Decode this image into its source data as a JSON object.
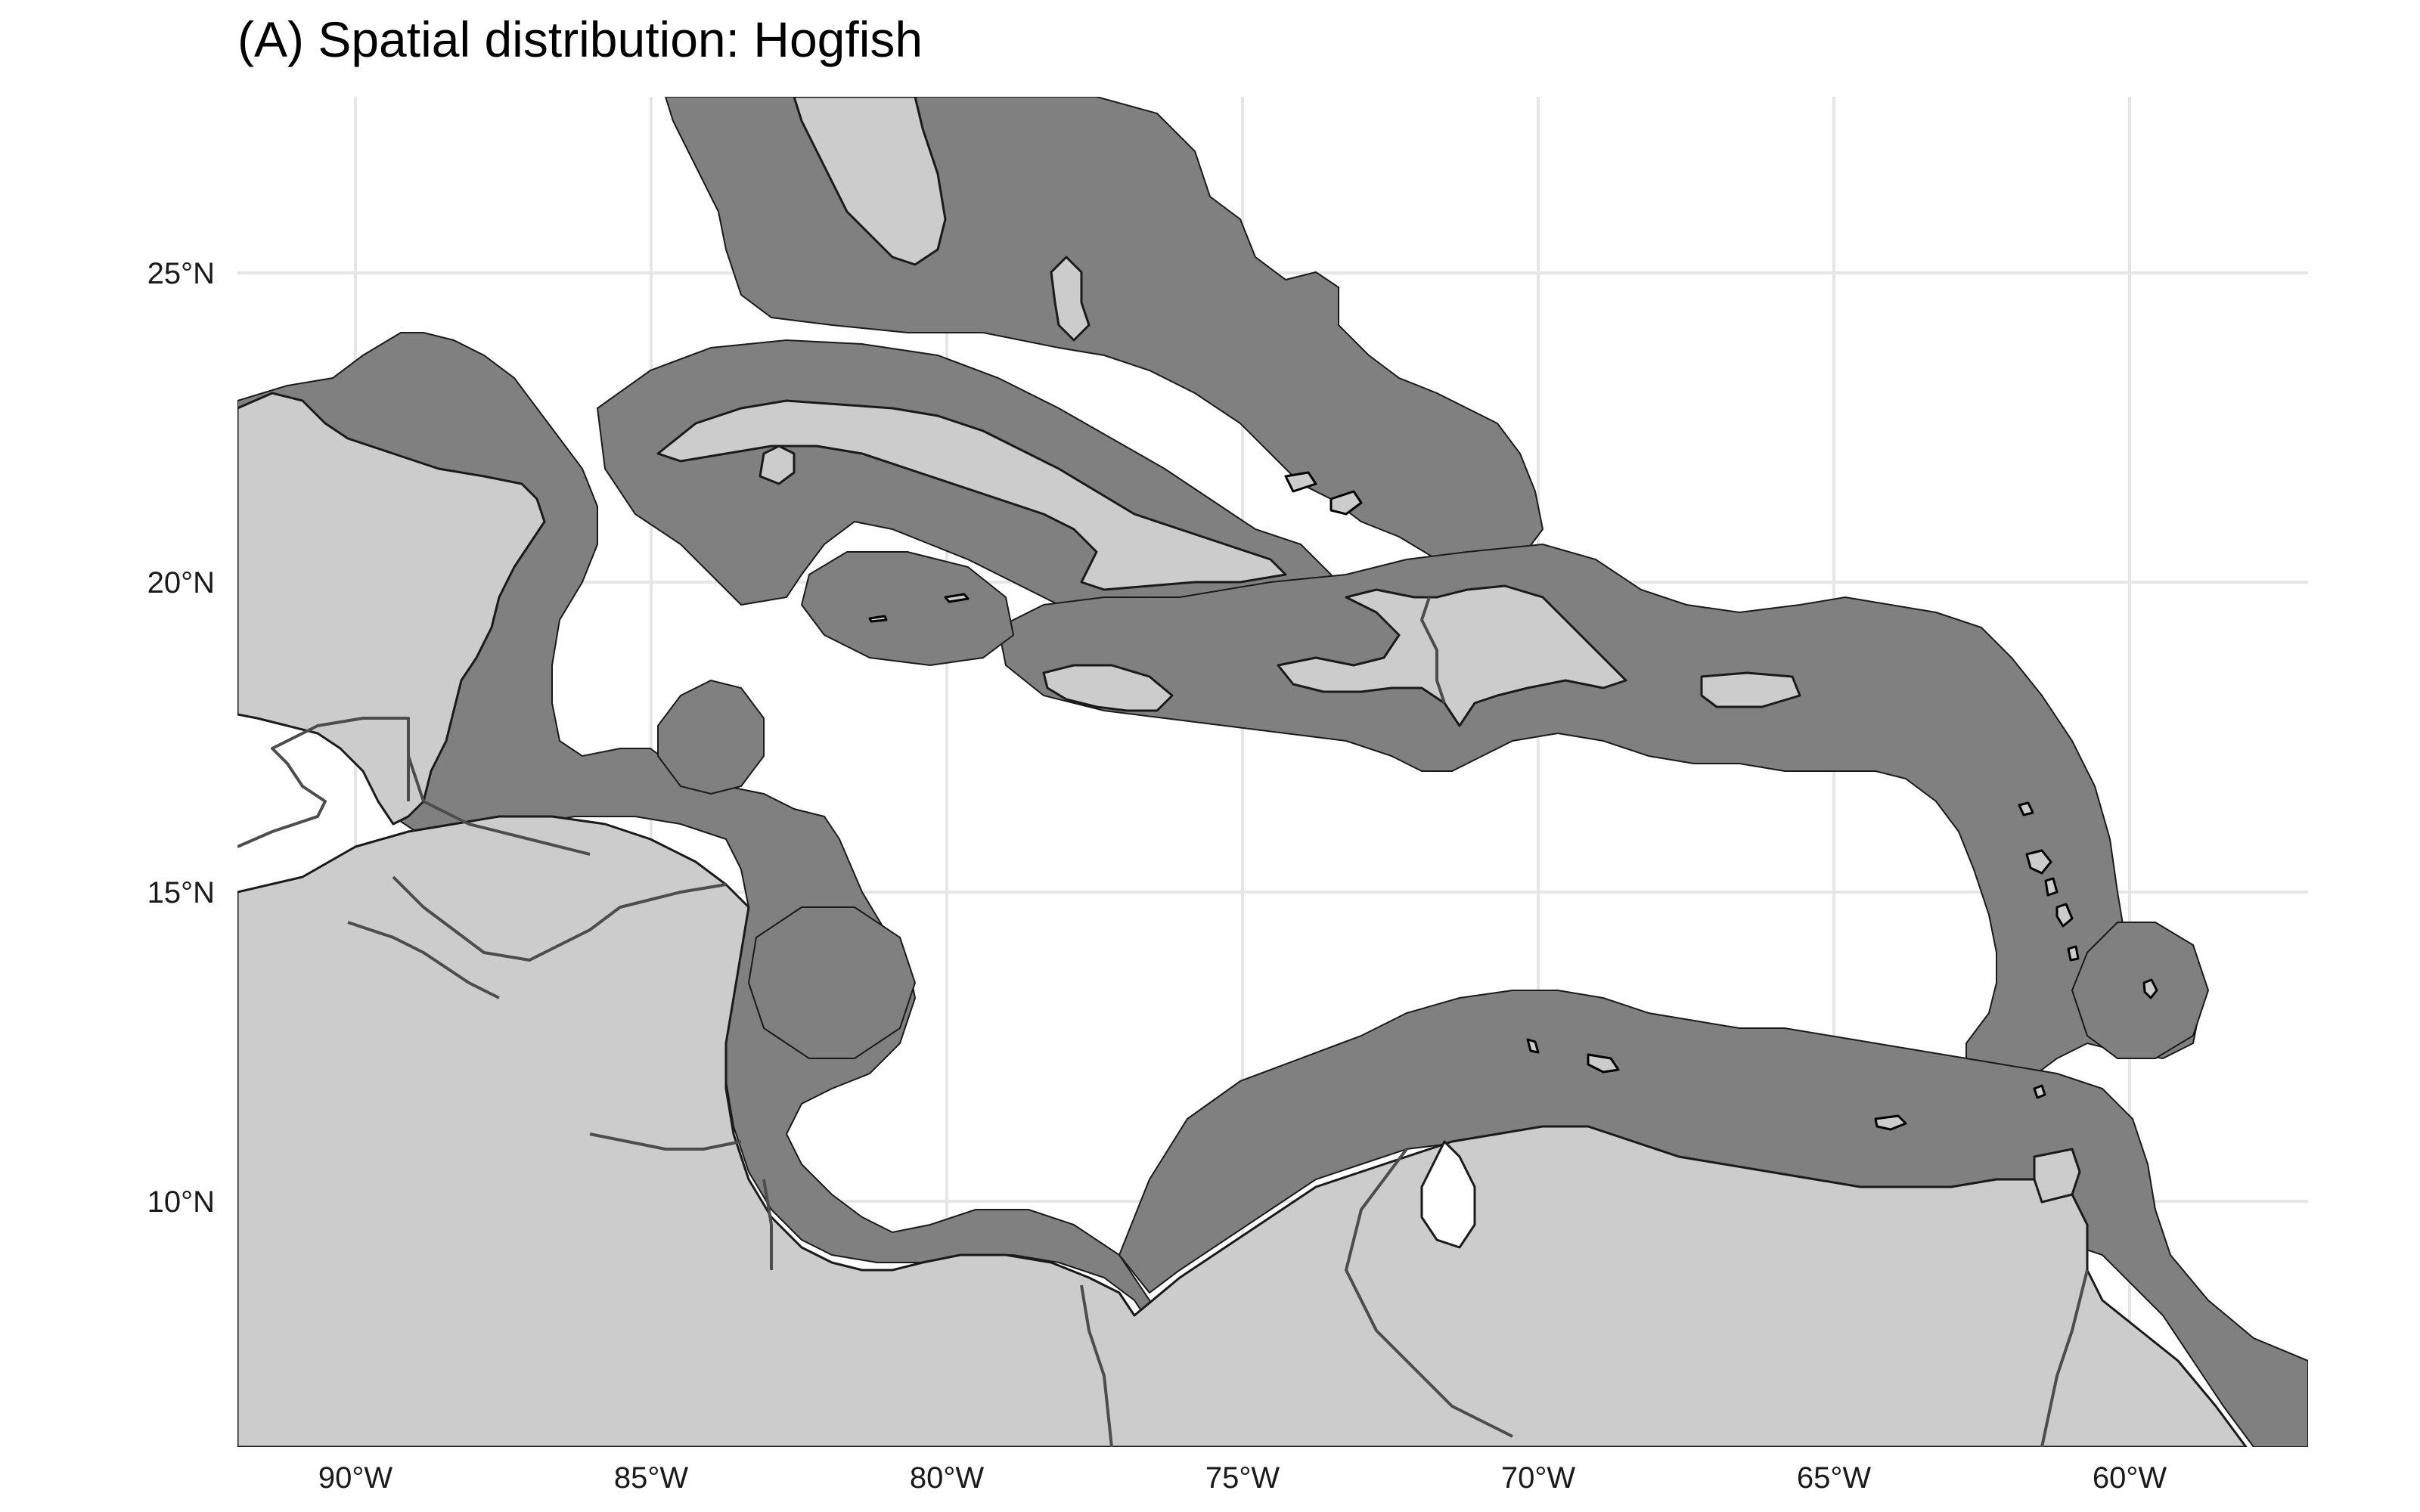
{
  "title": "(A) Spatial distribution: Hogfish",
  "map": {
    "lat_ticks": [
      "25°N",
      "20°N",
      "15°N",
      "10°N"
    ],
    "lon_ticks": [
      "90°W",
      "85°W",
      "80°W",
      "75°W",
      "70°W",
      "65°W",
      "60°W"
    ]
  },
  "colors": {
    "background": "#ffffff",
    "grid": "#e6e6e6",
    "distribution_buffer": "#808080",
    "land": "#cccccc",
    "country_border": "#4d4d4d",
    "coastline": "#1a1a1a"
  }
}
